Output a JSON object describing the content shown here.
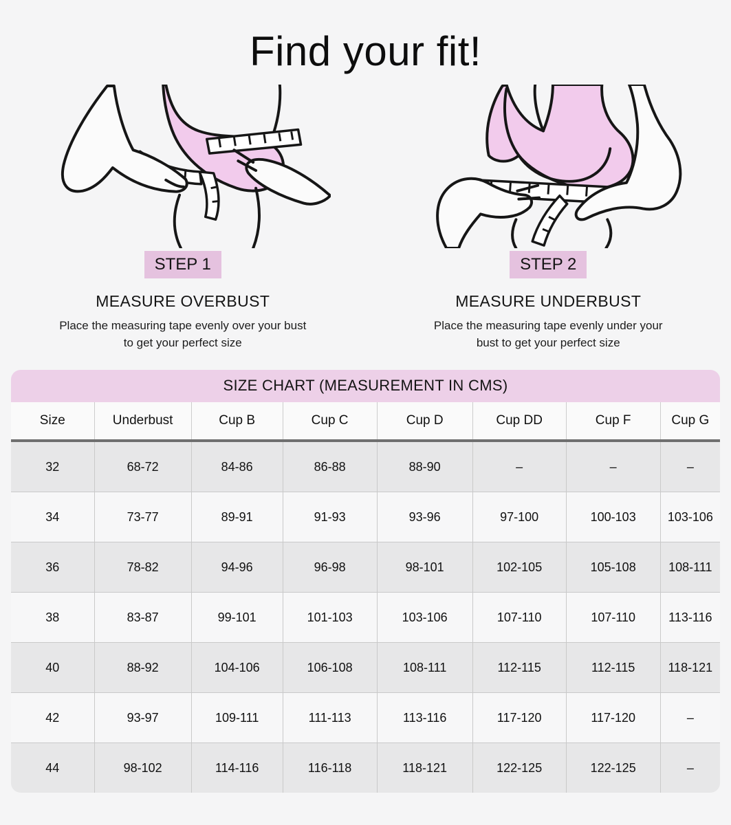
{
  "page": {
    "title": "Find your fit!"
  },
  "colors": {
    "background": "#f5f5f6",
    "badge_pink": "#e5c2df",
    "table_header_pink": "#edd0e8",
    "bra_pink": "#f2cbec",
    "row_gray": "#e7e7e8",
    "row_light": "#f7f7f8",
    "divider_dark": "#6f6f6f"
  },
  "steps": [
    {
      "badge": "STEP 1",
      "heading": "MEASURE OVERBUST",
      "description": "Place the measuring tape evenly over your bust to get your perfect size",
      "illustration": "overbust-measurement-illustration"
    },
    {
      "badge": "STEP 2",
      "heading": "MEASURE UNDERBUST",
      "description": "Place the measuring tape evenly under your bust to get your perfect size",
      "illustration": "underbust-measurement-illustration"
    }
  ],
  "chart_data": {
    "type": "table",
    "title": "SIZE CHART (MEASUREMENT IN CMS)",
    "columns": [
      "Size",
      "Underbust",
      "Cup B",
      "Cup C",
      "Cup D",
      "Cup DD",
      "Cup F",
      "Cup G"
    ],
    "rows": [
      [
        "32",
        "68-72",
        "84-86",
        "86-88",
        "88-90",
        "–",
        "–",
        "–"
      ],
      [
        "34",
        "73-77",
        "89-91",
        "91-93",
        "93-96",
        "97-100",
        "100-103",
        "103-106"
      ],
      [
        "36",
        "78-82",
        "94-96",
        "96-98",
        "98-101",
        "102-105",
        "105-108",
        "108-111"
      ],
      [
        "38",
        "83-87",
        "99-101",
        "101-103",
        "103-106",
        "107-110",
        "107-110",
        "113-116"
      ],
      [
        "40",
        "88-92",
        "104-106",
        "106-108",
        "108-111",
        "112-115",
        "112-115",
        "118-121"
      ],
      [
        "42",
        "93-97",
        "109-111",
        "111-113",
        "113-116",
        "117-120",
        "117-120",
        "–"
      ],
      [
        "44",
        "98-102",
        "114-116",
        "116-118",
        "118-121",
        "122-125",
        "122-125",
        "–"
      ]
    ]
  }
}
